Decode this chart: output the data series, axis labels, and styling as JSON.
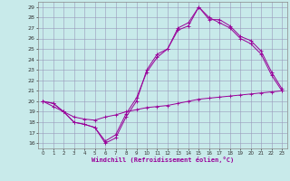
{
  "xlabel": "Windchill (Refroidissement éolien,°C)",
  "bg_color": "#c8eaea",
  "grid_color": "#9999bb",
  "line_color": "#990099",
  "xlim": [
    -0.5,
    23.5
  ],
  "ylim": [
    15.5,
    29.5
  ],
  "xticks": [
    0,
    1,
    2,
    3,
    4,
    5,
    6,
    7,
    8,
    9,
    10,
    11,
    12,
    13,
    14,
    15,
    16,
    17,
    18,
    19,
    20,
    21,
    22,
    23
  ],
  "yticks": [
    16,
    17,
    18,
    19,
    20,
    21,
    22,
    23,
    24,
    25,
    26,
    27,
    28,
    29
  ],
  "line1_x": [
    0,
    1,
    2,
    3,
    4,
    5,
    6,
    7,
    8,
    9,
    10,
    11,
    12,
    13,
    14,
    15,
    16,
    17,
    18,
    19,
    20,
    21,
    22,
    23
  ],
  "line1_y": [
    20,
    19.8,
    19,
    18,
    17.8,
    17.5,
    16,
    16.5,
    18.5,
    20,
    23,
    24.5,
    25,
    27,
    27.5,
    29,
    28,
    27.5,
    27,
    26,
    25.5,
    24.5,
    22.5,
    21
  ],
  "line2_x": [
    0,
    1,
    2,
    3,
    4,
    5,
    6,
    7,
    8,
    9,
    10,
    11,
    12,
    13,
    14,
    15,
    16,
    17,
    18,
    19,
    20,
    21,
    22,
    23
  ],
  "line2_y": [
    20,
    19.8,
    19,
    18,
    17.8,
    17.5,
    16.2,
    16.8,
    18.8,
    20.3,
    22.8,
    24.2,
    25.0,
    26.8,
    27.2,
    29.0,
    27.8,
    27.8,
    27.2,
    26.2,
    25.8,
    24.8,
    22.8,
    21.2
  ],
  "line3_x": [
    0,
    1,
    2,
    3,
    4,
    5,
    6,
    7,
    8,
    9,
    10,
    11,
    12,
    13,
    14,
    15,
    16,
    17,
    18,
    19,
    20,
    21,
    22,
    23
  ],
  "line3_y": [
    20,
    19.5,
    19.0,
    18.5,
    18.3,
    18.2,
    18.5,
    18.7,
    19.0,
    19.2,
    19.4,
    19.5,
    19.6,
    19.8,
    20.0,
    20.2,
    20.3,
    20.4,
    20.5,
    20.6,
    20.7,
    20.8,
    20.9,
    21.0
  ]
}
